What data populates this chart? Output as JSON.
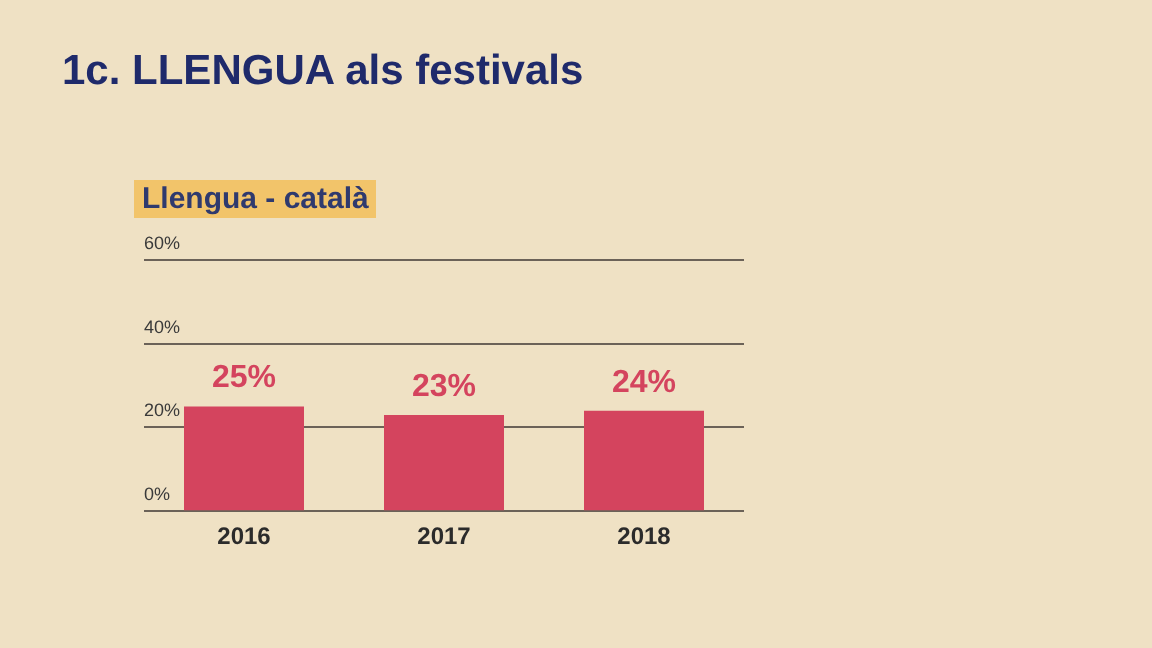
{
  "chart_data": {
    "type": "bar",
    "title": "1c. LLENGUA als festivals",
    "subtitle": "Llengua - català",
    "categories": [
      "2016",
      "2017",
      "2018"
    ],
    "values": [
      25,
      23,
      24
    ],
    "color": "#d4445e",
    "value_labels": [
      "25%",
      "23%",
      "24%"
    ],
    "ylim": [
      0,
      60
    ],
    "yticks": [
      {
        "value": 0,
        "label": "0%"
      },
      {
        "value": 20,
        "label": "20%"
      },
      {
        "value": 40,
        "label": "40%"
      },
      {
        "value": 60,
        "label": "60%"
      }
    ],
    "grid": "y",
    "legend": false
  }
}
